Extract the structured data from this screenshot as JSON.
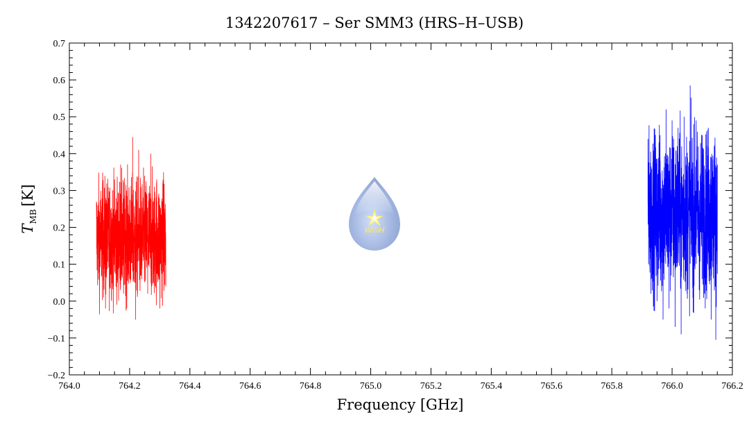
{
  "chart_data": {
    "type": "line",
    "title": "1342207617 – Ser SMM3 (HRS–H–USB)",
    "xlabel": "Frequency [GHz]",
    "ylabel": {
      "symbol": "T",
      "subscript": "MB",
      "unit": "[K]"
    },
    "xlim": [
      764.0,
      766.2
    ],
    "ylim": [
      -0.2,
      0.7
    ],
    "x_ticks": [
      "764.0",
      "764.2",
      "764.4",
      "764.6",
      "764.8",
      "765.0",
      "765.2",
      "765.4",
      "765.6",
      "765.8",
      "766.0",
      "766.2"
    ],
    "y_ticks": [
      "−0.2",
      "−0.1",
      "0.0",
      "0.1",
      "0.2",
      "0.3",
      "0.4",
      "0.5",
      "0.6",
      "0.7"
    ],
    "grid": false,
    "legend": "none",
    "series": [
      {
        "color": "#ff0000",
        "x_range": [
          764.09,
          764.32
        ],
        "mean": 0.17,
        "approx_min": -0.06,
        "approx_max": 0.445,
        "note_points": [
          [
            764.09,
            0.27
          ],
          [
            764.1,
            0.05
          ],
          [
            764.11,
            0.32
          ],
          [
            764.12,
            -0.02
          ],
          [
            764.13,
            0.28
          ],
          [
            764.14,
            0.1
          ],
          [
            764.15,
            0.33
          ],
          [
            764.16,
            0.05
          ],
          [
            764.17,
            0.37
          ],
          [
            764.18,
            0.02
          ],
          [
            764.19,
            0.3
          ],
          [
            764.2,
            0.08
          ],
          [
            764.21,
            0.445
          ],
          [
            764.22,
            -0.05
          ],
          [
            764.23,
            0.41
          ],
          [
            764.24,
            0.06
          ],
          [
            764.25,
            0.34
          ],
          [
            764.26,
            0.02
          ],
          [
            764.27,
            0.4
          ],
          [
            764.28,
            0.05
          ],
          [
            764.29,
            0.33
          ],
          [
            764.3,
            -0.02
          ],
          [
            764.31,
            0.32
          ],
          [
            764.32,
            0.04
          ]
        ]
      },
      {
        "color": "#0000ff",
        "x_range": [
          765.92,
          766.15
        ],
        "mean": 0.24,
        "approx_min": -0.105,
        "approx_max": 0.585,
        "note_points": [
          [
            765.92,
            0.44
          ],
          [
            765.93,
            0.02
          ],
          [
            765.94,
            0.43
          ],
          [
            765.95,
            0.0
          ],
          [
            765.96,
            0.45
          ],
          [
            765.97,
            -0.05
          ],
          [
            765.98,
            0.52
          ],
          [
            765.99,
            -0.02
          ],
          [
            766.0,
            0.49
          ],
          [
            766.01,
            -0.07
          ],
          [
            766.02,
            0.47
          ],
          [
            766.03,
            -0.09
          ],
          [
            766.04,
            0.5
          ],
          [
            766.05,
            0.02
          ],
          [
            766.06,
            0.585
          ],
          [
            766.07,
            -0.03
          ],
          [
            766.08,
            0.49
          ],
          [
            766.09,
            0.03
          ],
          [
            766.1,
            0.45
          ],
          [
            766.11,
            -0.02
          ],
          [
            766.12,
            0.47
          ],
          [
            766.13,
            -0.05
          ],
          [
            766.14,
            0.42
          ],
          [
            766.145,
            -0.105
          ],
          [
            766.15,
            0.37
          ]
        ]
      }
    ]
  },
  "logo": {
    "icon": "water-drop-logo-icon",
    "text": "WISH"
  }
}
